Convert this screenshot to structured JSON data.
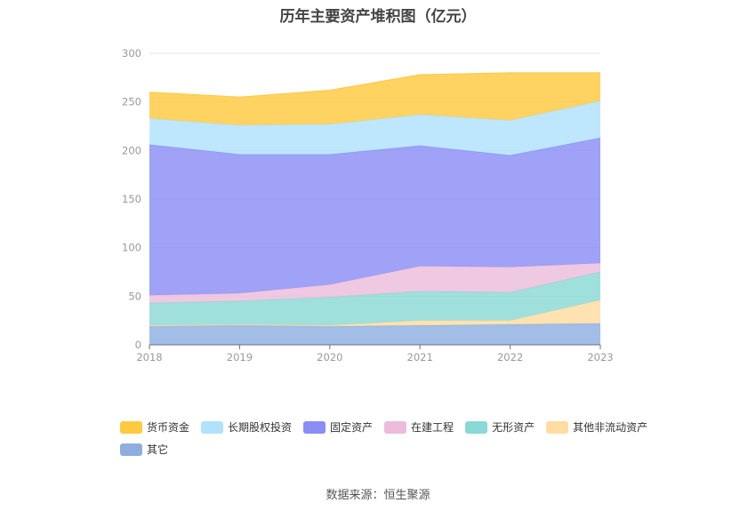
{
  "page": {
    "title": "历年主要资产堆积图（亿元）",
    "source": "数据来源：恒生聚源"
  },
  "chart_data": {
    "type": "area",
    "stacked": true,
    "title": "历年主要资产堆积图（亿元）",
    "x": [
      "2018",
      "2019",
      "2020",
      "2021",
      "2022",
      "2023"
    ],
    "ylim": [
      0,
      300
    ],
    "yticks": [
      "0",
      "50",
      "100",
      "150",
      "200",
      "250",
      "300"
    ],
    "grid": true,
    "legend_position": "bottom",
    "series": [
      {
        "name": "其它",
        "color": "#8eaee0",
        "values": [
          19,
          20,
          19,
          20,
          21,
          22
        ]
      },
      {
        "name": "其他非流动资产",
        "color": "#ffdca0",
        "values": [
          1,
          1,
          1,
          5,
          4,
          24
        ]
      },
      {
        "name": "无形资产",
        "color": "#8ad9d6",
        "values": [
          23,
          24,
          29,
          30,
          29,
          29
        ]
      },
      {
        "name": "在建工程",
        "color": "#ecbcda",
        "values": [
          8,
          8,
          13,
          26,
          26,
          9
        ]
      },
      {
        "name": "固定资产",
        "color": "#8a8df5",
        "values": [
          155,
          143,
          134,
          124,
          115,
          129
        ]
      },
      {
        "name": "长期股权投资",
        "color": "#b0e2fd",
        "values": [
          27,
          30,
          31,
          32,
          36,
          38
        ]
      },
      {
        "name": "货币资金",
        "color": "#ffc940",
        "values": [
          27,
          29,
          35,
          41,
          49,
          29
        ]
      }
    ],
    "legend_order": [
      "货币资金",
      "长期股权投资",
      "固定资产",
      "在建工程",
      "无形资产",
      "其他非流动资产",
      "其它"
    ]
  }
}
